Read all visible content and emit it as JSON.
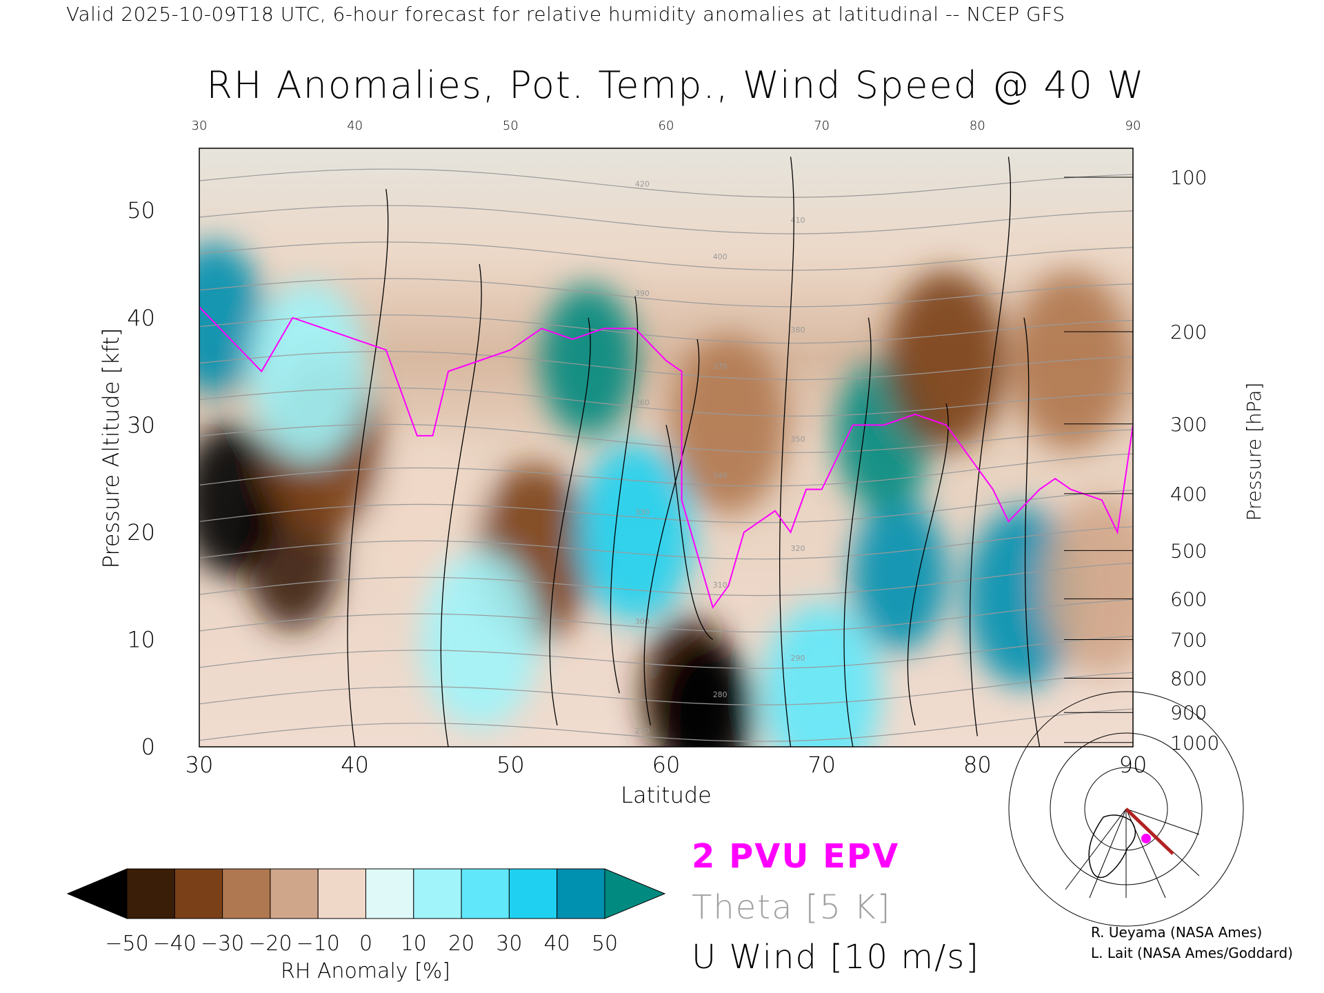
{
  "header": {
    "subtitle": "Valid 2025-10-09T18 UTC, 6-hour forecast for relative humidity anomalies at latitudinal -- NCEP GFS",
    "title": "RH Anomalies, Pot. Temp., Wind Speed @ 40 W"
  },
  "legend": {
    "pvu": "2 PVU EPV",
    "theta": "Theta [5 K]",
    "uwind": "U Wind [10 m/s]",
    "pvu_color": "#ff00ff",
    "theta_color": "#a0a0a0"
  },
  "credits": [
    "R. Ueyama (NASA Ames)",
    "L. Lait (NASA Ames/Goddard)"
  ],
  "chart_data": {
    "type": "heatmap",
    "title": "RH Anomalies, Pot. Temp., Wind Speed @ 40 W",
    "xlabel": "Latitude",
    "ylabel": "Pressure Altitude [kft]",
    "y2label": "Pressure [hPa]",
    "xlim": [
      30,
      90
    ],
    "ylim": [
      0,
      55.8
    ],
    "x_ticks": [
      30,
      40,
      50,
      60,
      70,
      80,
      90
    ],
    "y_ticks": [
      0,
      10,
      20,
      30,
      40,
      50
    ],
    "y2_ticks": [
      {
        "label": "100",
        "kft": 53.1
      },
      {
        "label": "200",
        "kft": 38.7
      },
      {
        "label": "300",
        "kft": 30.1
      },
      {
        "label": "400",
        "kft": 23.6
      },
      {
        "label": "500",
        "kft": 18.3
      },
      {
        "label": "600",
        "kft": 13.8
      },
      {
        "label": "700",
        "kft": 10.0
      },
      {
        "label": "800",
        "kft": 6.4
      },
      {
        "label": "900",
        "kft": 3.2
      },
      {
        "label": "1000",
        "kft": 0.4
      }
    ],
    "colorbar": {
      "label": "RH Anomaly [%]",
      "ticks": [
        "-50",
        "-40",
        "-30",
        "-20",
        "-10",
        "0",
        "10",
        "20",
        "30",
        "40",
        "50"
      ],
      "under_color": "#000000",
      "over_color": "#008a80",
      "colors": [
        "#3a1e08",
        "#7a4018",
        "#b07850",
        "#d0a68a",
        "#f0d8c8",
        "#dff8f8",
        "#a0f4fa",
        "#60e8fa",
        "#20d0f0",
        "#0090b0"
      ]
    },
    "rh_field_features": [
      {
        "lat": 36,
        "kft": 18,
        "rh": -45
      },
      {
        "lat": 32,
        "kft": 23,
        "rh": -55
      },
      {
        "lat": 38,
        "kft": 28,
        "rh": -35
      },
      {
        "lat": 31,
        "kft": 40,
        "rh": 45
      },
      {
        "lat": 37,
        "kft": 35,
        "rh": 15
      },
      {
        "lat": 45,
        "kft": 20,
        "rh": -10
      },
      {
        "lat": 51.5,
        "kft": 18,
        "rh": -40
      },
      {
        "lat": 48,
        "kft": 10,
        "rh": 15
      },
      {
        "lat": 55,
        "kft": 36,
        "rh": 50
      },
      {
        "lat": 58,
        "kft": 20,
        "rh": 35
      },
      {
        "lat": 61.5,
        "kft": 5,
        "rh": -45
      },
      {
        "lat": 62.5,
        "kft": 3,
        "rh": -60
      },
      {
        "lat": 64,
        "kft": 30,
        "rh": -30
      },
      {
        "lat": 75,
        "kft": 16,
        "rh": 45
      },
      {
        "lat": 74,
        "kft": 29,
        "rh": 55
      },
      {
        "lat": 83,
        "kft": 14,
        "rh": 40
      },
      {
        "lat": 78,
        "kft": 36,
        "rh": -35
      },
      {
        "lat": 86,
        "kft": 36,
        "rh": -30
      },
      {
        "lat": 88,
        "kft": 15,
        "rh": -15
      },
      {
        "lat": 70,
        "kft": 5,
        "rh": 25
      }
    ],
    "theta_levels": [
      270,
      280,
      290,
      300,
      310,
      320,
      330,
      340,
      350,
      360,
      370,
      380,
      390,
      400,
      410,
      420
    ],
    "pv2_line": [
      [
        30,
        41
      ],
      [
        32,
        38
      ],
      [
        34,
        35
      ],
      [
        36,
        40
      ],
      [
        38,
        39
      ],
      [
        40,
        38
      ],
      [
        42,
        37
      ],
      [
        43,
        33
      ],
      [
        44,
        29
      ],
      [
        45,
        29
      ],
      [
        46,
        35
      ],
      [
        48,
        36
      ],
      [
        50,
        37
      ],
      [
        52,
        39
      ],
      [
        54,
        38
      ],
      [
        56,
        39
      ],
      [
        58,
        39
      ],
      [
        60,
        36
      ],
      [
        61,
        35
      ],
      [
        61,
        23
      ],
      [
        62,
        18
      ],
      [
        63,
        13
      ],
      [
        64,
        15
      ],
      [
        65,
        20
      ],
      [
        67,
        22
      ],
      [
        68,
        20
      ],
      [
        69,
        24
      ],
      [
        70,
        24
      ],
      [
        71,
        27
      ],
      [
        72,
        30
      ],
      [
        74,
        30
      ],
      [
        76,
        31
      ],
      [
        78,
        30
      ],
      [
        80,
        26
      ],
      [
        81,
        24
      ],
      [
        82,
        21
      ],
      [
        84,
        24
      ],
      [
        85,
        25
      ],
      [
        86,
        24
      ],
      [
        88,
        23
      ],
      [
        89,
        20
      ],
      [
        90,
        30
      ]
    ]
  }
}
